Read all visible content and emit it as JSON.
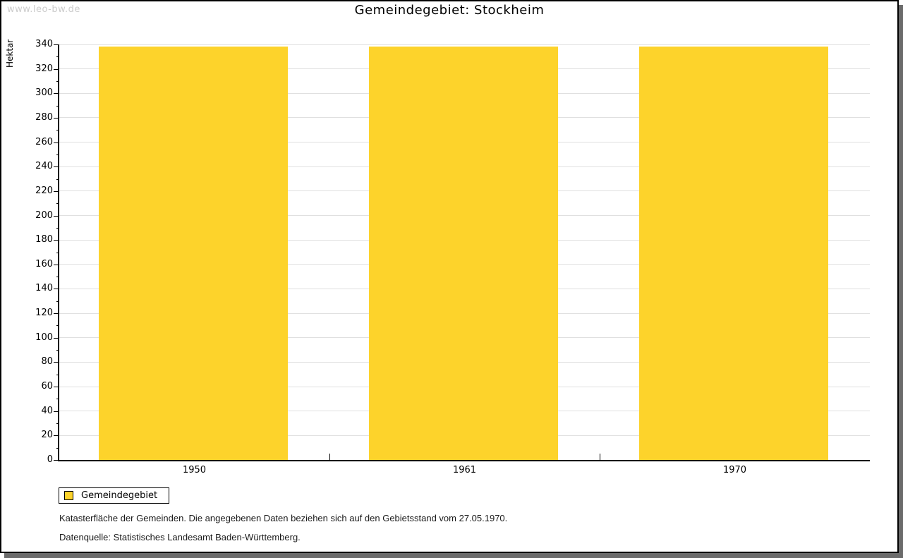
{
  "watermark": "www.leo-bw.de",
  "title": "Gemeindegebiet: Stockheim",
  "chart_data": {
    "type": "bar",
    "title": "Gemeindegebiet: Stockheim",
    "categories": [
      "1950",
      "1961",
      "1970"
    ],
    "series": [
      {
        "name": "Gemeindegebiet",
        "color": "#FDD32B",
        "values": [
          338,
          338,
          338
        ]
      }
    ],
    "xlabel": "",
    "ylabel": "Hektar",
    "ylim": [
      0,
      340
    ],
    "y_major_step": 20,
    "y_minor_step": 10,
    "grid": true,
    "legend_position": "bottom-left"
  },
  "legend": {
    "label": "Gemeindegebiet",
    "swatch_color": "#FDD32B"
  },
  "footnotes": {
    "line1": "Katasterfläche der Gemeinden. Die angegebenen Daten beziehen sich auf den Gebietsstand vom 27.05.1970.",
    "line2": "Datenquelle: Statistisches Landesamt Baden-Württemberg."
  },
  "colors": {
    "bar": "#FDD32B",
    "grid": "#e0e0e0",
    "axis": "#000000",
    "watermark": "#cccccc",
    "frame_shadow": "#6b6b6b"
  }
}
